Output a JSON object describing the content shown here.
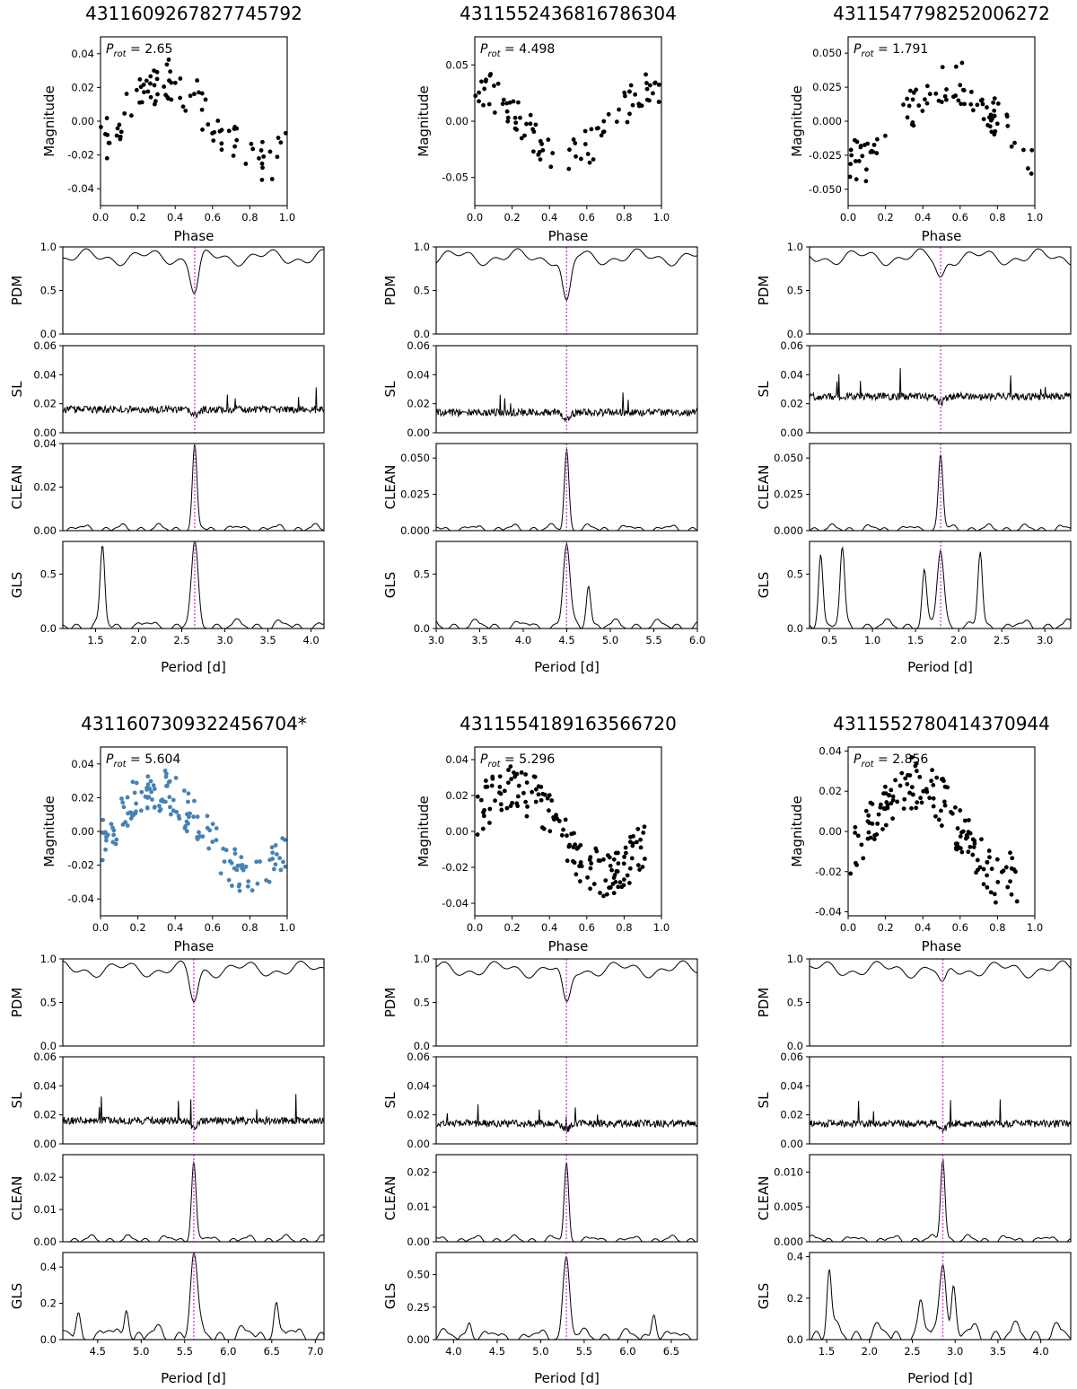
{
  "figure": {
    "panels": [
      {
        "id": "4311609267827745792",
        "title": "4311609267827745792",
        "prot_label": "2.65",
        "prot": 2.65,
        "dot_color": "#000000",
        "phase_ylim": [
          -0.05,
          0.05
        ],
        "phase_yticks": [
          -0.04,
          -0.02,
          0.0,
          0.02,
          0.04
        ],
        "period_xlim": [
          1.12,
          4.15
        ],
        "period_xticks": [
          "1.5",
          "2.0",
          "2.5",
          "3.0",
          "3.5",
          "4.0"
        ],
        "period_xtick_values": [
          1.5,
          2.0,
          2.5,
          3.0,
          3.5,
          4.0
        ],
        "pdm_ylim": [
          0,
          1
        ],
        "pdm_yticks": [
          "0.0",
          "0.5",
          "1.0"
        ],
        "sl_ylim": [
          0,
          0.06
        ],
        "sl_yticks": [
          "0.00",
          "0.02",
          "0.04",
          "0.06"
        ],
        "clean_ylim": [
          0,
          0.04
        ],
        "clean_yticks": [
          "0.00",
          "0.02",
          "0.04"
        ],
        "gls_ylim": [
          0,
          0.8
        ],
        "gls_yticks": [
          "0.0",
          "0.5"
        ],
        "clean_peak": 0.037,
        "gls_peak": 0.73,
        "gls_extra_peaks": [
          [
            1.58,
            0.72
          ]
        ]
      },
      {
        "id": "4311552436816786304",
        "title": "4311552436816786304",
        "prot_label": "4.498",
        "prot": 4.498,
        "dot_color": "#000000",
        "phase_ylim": [
          -0.075,
          0.075
        ],
        "phase_yticks": [
          -0.05,
          0.0,
          0.05
        ],
        "period_xlim": [
          3.0,
          6.0
        ],
        "period_xticks": [
          "3.0",
          "3.5",
          "4.0",
          "4.5",
          "5.0",
          "5.5",
          "6.0"
        ],
        "period_xtick_values": [
          3.0,
          3.5,
          4.0,
          4.5,
          5.0,
          5.5,
          6.0
        ],
        "pdm_ylim": [
          0,
          1
        ],
        "pdm_yticks": [
          "0.0",
          "0.5",
          "1.0"
        ],
        "sl_ylim": [
          0,
          0.06
        ],
        "sl_yticks": [
          "0.00",
          "0.02",
          "0.04",
          "0.06"
        ],
        "clean_ylim": [
          0,
          0.06
        ],
        "clean_yticks": [
          "0.000",
          "0.025",
          "0.050"
        ],
        "gls_ylim": [
          0,
          0.8
        ],
        "gls_yticks": [
          "0.0",
          "0.5"
        ],
        "clean_peak": 0.055,
        "gls_peak": 0.73,
        "gls_extra_peaks": [
          [
            4.75,
            0.39
          ]
        ]
      },
      {
        "id": "4311547798252006272",
        "title": "4311547798252006272",
        "prot_label": "1.791",
        "prot": 1.791,
        "dot_color": "#000000",
        "phase_ylim": [
          -0.062,
          0.062
        ],
        "phase_yticks": [
          -0.05,
          -0.025,
          0.0,
          0.025,
          0.05
        ],
        "period_xlim": [
          0.27,
          3.3
        ],
        "period_xticks": [
          "0.5",
          "1.0",
          "1.5",
          "2.0",
          "2.5",
          "3.0"
        ],
        "period_xtick_values": [
          0.5,
          1.0,
          1.5,
          2.0,
          2.5,
          3.0
        ],
        "pdm_ylim": [
          0,
          1
        ],
        "pdm_yticks": [
          "0.0",
          "0.5",
          "1.0"
        ],
        "sl_ylim": [
          0,
          0.06
        ],
        "sl_yticks": [
          "0.00",
          "0.02",
          "0.04",
          "0.06"
        ],
        "clean_ylim": [
          0,
          0.06
        ],
        "clean_yticks": [
          "0.000",
          "0.025",
          "0.050"
        ],
        "gls_ylim": [
          0,
          0.8
        ],
        "gls_yticks": [
          "0.0",
          "0.5"
        ],
        "clean_peak": 0.052,
        "gls_peak": 0.7,
        "gls_extra_peaks": [
          [
            0.4,
            0.68
          ],
          [
            0.65,
            0.7
          ],
          [
            2.25,
            0.66
          ],
          [
            1.6,
            0.5
          ]
        ]
      },
      {
        "id": "4311607309322456704*",
        "title": "4311607309322456704*",
        "prot_label": "5.604",
        "prot": 5.604,
        "dot_color": "#4682b4",
        "phase_ylim": [
          -0.05,
          0.05
        ],
        "phase_yticks": [
          -0.04,
          -0.02,
          0.0,
          0.02,
          0.04
        ],
        "period_xlim": [
          4.1,
          7.1
        ],
        "period_xticks": [
          "4.5",
          "5.0",
          "5.5",
          "6.0",
          "6.5",
          "7.0"
        ],
        "period_xtick_values": [
          4.5,
          5.0,
          5.5,
          6.0,
          6.5,
          7.0
        ],
        "pdm_ylim": [
          0,
          1
        ],
        "pdm_yticks": [
          "0.0",
          "0.5",
          "1.0"
        ],
        "sl_ylim": [
          0,
          0.06
        ],
        "sl_yticks": [
          "0.00",
          "0.02",
          "0.04",
          "0.06"
        ],
        "clean_ylim": [
          0,
          0.027
        ],
        "clean_yticks": [
          "0.00",
          "0.01",
          "0.02"
        ],
        "gls_ylim": [
          0,
          0.48
        ],
        "gls_yticks": [
          "0.0",
          "0.2",
          "0.4"
        ],
        "clean_peak": 0.025,
        "gls_peak": 0.45,
        "gls_extra_peaks": [
          [
            4.83,
            0.16
          ],
          [
            4.28,
            0.11
          ],
          [
            6.55,
            0.2
          ]
        ]
      },
      {
        "id": "4311554189163566720",
        "title": "4311554189163566720",
        "prot_label": "5.296",
        "prot": 5.296,
        "dot_color": "#000000",
        "phase_ylim": [
          -0.047,
          0.047
        ],
        "phase_yticks": [
          -0.04,
          -0.02,
          0.0,
          0.02,
          0.04
        ],
        "period_xlim": [
          3.8,
          6.8
        ],
        "period_xticks": [
          "4.0",
          "4.5",
          "5.0",
          "5.5",
          "6.0",
          "6.5"
        ],
        "period_xtick_values": [
          4.0,
          4.5,
          5.0,
          5.5,
          6.0,
          6.5
        ],
        "pdm_ylim": [
          0,
          1
        ],
        "pdm_yticks": [
          "0.0",
          "0.5",
          "1.0"
        ],
        "sl_ylim": [
          0,
          0.06
        ],
        "sl_yticks": [
          "0.00",
          "0.02",
          "0.04",
          "0.06"
        ],
        "clean_ylim": [
          0,
          0.025
        ],
        "clean_yticks": [
          "0.00",
          "0.01",
          "0.02"
        ],
        "gls_ylim": [
          0,
          0.67
        ],
        "gls_yticks": [
          "0.00",
          "0.25",
          "0.50"
        ],
        "clean_peak": 0.022,
        "gls_peak": 0.61,
        "gls_extra_peaks": [
          [
            4.18,
            0.13
          ],
          [
            6.3,
            0.19
          ]
        ]
      },
      {
        "id": "4311552780414370944",
        "title": "4311552780414370944",
        "prot_label": "2.856",
        "prot": 2.856,
        "dot_color": "#000000",
        "phase_ylim": [
          -0.042,
          0.042
        ],
        "phase_yticks": [
          -0.04,
          -0.02,
          0.0,
          0.02,
          0.04
        ],
        "period_xlim": [
          1.3,
          4.35
        ],
        "period_xticks": [
          "1.5",
          "2.0",
          "2.5",
          "3.0",
          "3.5",
          "4.0"
        ],
        "period_xtick_values": [
          1.5,
          2.0,
          2.5,
          3.0,
          3.5,
          4.0
        ],
        "pdm_ylim": [
          0,
          1
        ],
        "pdm_yticks": [
          "0.0",
          "0.5",
          "1.0"
        ],
        "sl_ylim": [
          0,
          0.06
        ],
        "sl_yticks": [
          "0.00",
          "0.02",
          "0.04",
          "0.06"
        ],
        "clean_ylim": [
          0,
          0.0125
        ],
        "clean_yticks": [
          "0.000",
          "0.005",
          "0.010"
        ],
        "gls_ylim": [
          0,
          0.42
        ],
        "gls_yticks": [
          "0.0",
          "0.2",
          "0.4"
        ],
        "clean_peak": 0.0118,
        "gls_peak": 0.36,
        "gls_extra_peaks": [
          [
            1.53,
            0.31
          ],
          [
            2.98,
            0.23
          ],
          [
            2.6,
            0.15
          ]
        ]
      }
    ],
    "labels": {
      "phase": "Phase",
      "magnitude": "Magnitude",
      "period": "Period [d]",
      "pdm": "PDM",
      "sl": "SL",
      "clean": "CLEAN",
      "gls": "GLS",
      "prot_symbol": "P",
      "prot_subscript": "rot",
      "prot_eq": " = ",
      "phase_xticks": [
        "0.0",
        "0.2",
        "0.4",
        "0.6",
        "0.8",
        "1.0"
      ]
    }
  },
  "chart_data": [
    {
      "type": "scatter",
      "title": "4311609267827745792",
      "xlabel": "Phase",
      "ylabel": "Magnitude",
      "xlim": [
        0,
        1
      ],
      "annotation": "P_rot = 2.65",
      "periodograms": [
        "PDM",
        "SL",
        "CLEAN",
        "GLS"
      ],
      "period_xlabel": "Period [d]",
      "best_period": 2.65
    },
    {
      "type": "scatter",
      "title": "4311552436816786304",
      "xlabel": "Phase",
      "ylabel": "Magnitude",
      "xlim": [
        0,
        1
      ],
      "annotation": "P_rot = 4.498",
      "periodograms": [
        "PDM",
        "SL",
        "CLEAN",
        "GLS"
      ],
      "period_xlabel": "Period [d]",
      "best_period": 4.498
    },
    {
      "type": "scatter",
      "title": "4311547798252006272",
      "xlabel": "Phase",
      "ylabel": "Magnitude",
      "xlim": [
        0,
        1
      ],
      "annotation": "P_rot = 1.791",
      "periodograms": [
        "PDM",
        "SL",
        "CLEAN",
        "GLS"
      ],
      "period_xlabel": "Period [d]",
      "best_period": 1.791
    },
    {
      "type": "scatter",
      "title": "4311607309322456704*",
      "xlabel": "Phase",
      "ylabel": "Magnitude",
      "xlim": [
        0,
        1
      ],
      "annotation": "P_rot = 5.604",
      "periodograms": [
        "PDM",
        "SL",
        "CLEAN",
        "GLS"
      ],
      "period_xlabel": "Period [d]",
      "best_period": 5.604
    },
    {
      "type": "scatter",
      "title": "4311554189163566720",
      "xlabel": "Phase",
      "ylabel": "Magnitude",
      "xlim": [
        0,
        1
      ],
      "annotation": "P_rot = 5.296",
      "periodograms": [
        "PDM",
        "SL",
        "CLEAN",
        "GLS"
      ],
      "period_xlabel": "Period [d]",
      "best_period": 5.296
    },
    {
      "type": "scatter",
      "title": "4311552780414370944",
      "xlabel": "Phase",
      "ylabel": "Magnitude",
      "xlim": [
        0,
        1
      ],
      "annotation": "P_rot = 2.856",
      "periodograms": [
        "PDM",
        "SL",
        "CLEAN",
        "GLS"
      ],
      "period_xlabel": "Period [d]",
      "best_period": 2.856
    }
  ]
}
